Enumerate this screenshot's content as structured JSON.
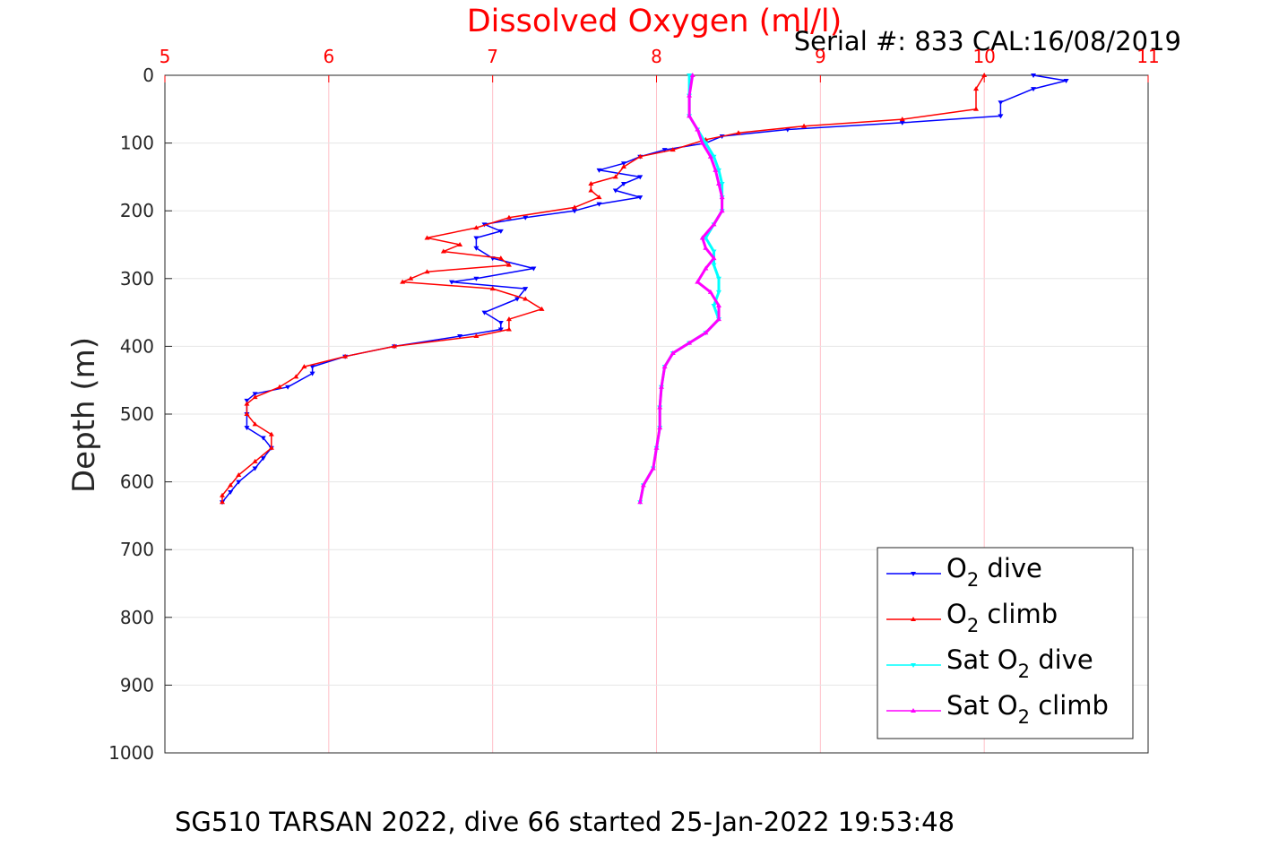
{
  "chart_data": {
    "type": "line",
    "title": "Dissolved Oxygen (ml/l)",
    "subtitle": "Serial #: 833  CAL:16/08/2019",
    "caption": "SG510 TARSAN 2022, dive 66 started 25-Jan-2022 19:53:48",
    "xlabel": "",
    "ylabel": "Depth (m)",
    "xlim": [
      5,
      11
    ],
    "ylim": [
      0,
      1000
    ],
    "y_reversed": true,
    "x_axis_position": "top",
    "xticks": [
      5,
      6,
      7,
      8,
      9,
      10,
      11
    ],
    "yticks": [
      0,
      100,
      200,
      300,
      400,
      500,
      600,
      700,
      800,
      900,
      1000
    ],
    "grid": true,
    "legend_position": "bottom-right",
    "colors": {
      "title": "#ff0000",
      "xticks": "#ff0000",
      "grid": "#ffc0c8"
    },
    "series": [
      {
        "label_main": "O",
        "label_sub": "2",
        "label_tail": " dive",
        "color": "#0000ff",
        "marker": "triangle-down",
        "points": [
          [
            10.3,
            0
          ],
          [
            10.5,
            8
          ],
          [
            10.3,
            20
          ],
          [
            10.1,
            40
          ],
          [
            10.1,
            60
          ],
          [
            9.5,
            70
          ],
          [
            8.8,
            80
          ],
          [
            8.4,
            90
          ],
          [
            8.3,
            100
          ],
          [
            8.05,
            110
          ],
          [
            7.9,
            120
          ],
          [
            7.8,
            130
          ],
          [
            7.65,
            140
          ],
          [
            7.9,
            150
          ],
          [
            7.8,
            160
          ],
          [
            7.75,
            170
          ],
          [
            7.9,
            180
          ],
          [
            7.65,
            190
          ],
          [
            7.5,
            200
          ],
          [
            7.2,
            210
          ],
          [
            6.95,
            220
          ],
          [
            7.05,
            230
          ],
          [
            6.9,
            240
          ],
          [
            6.9,
            255
          ],
          [
            7.0,
            270
          ],
          [
            7.25,
            285
          ],
          [
            6.9,
            300
          ],
          [
            6.75,
            305
          ],
          [
            7.2,
            315
          ],
          [
            7.15,
            330
          ],
          [
            6.95,
            350
          ],
          [
            7.05,
            365
          ],
          [
            7.05,
            375
          ],
          [
            6.8,
            385
          ],
          [
            6.4,
            400
          ],
          [
            6.1,
            415
          ],
          [
            5.9,
            430
          ],
          [
            5.9,
            440
          ],
          [
            5.75,
            460
          ],
          [
            5.55,
            470
          ],
          [
            5.5,
            480
          ],
          [
            5.5,
            500
          ],
          [
            5.5,
            520
          ],
          [
            5.6,
            535
          ],
          [
            5.65,
            550
          ],
          [
            5.6,
            565
          ],
          [
            5.55,
            580
          ],
          [
            5.45,
            600
          ],
          [
            5.4,
            615
          ],
          [
            5.35,
            630
          ]
        ]
      },
      {
        "label_main": "O",
        "label_sub": "2",
        "label_tail": " climb",
        "color": "#ff0000",
        "marker": "triangle-up",
        "points": [
          [
            10.0,
            0
          ],
          [
            9.95,
            20
          ],
          [
            9.95,
            50
          ],
          [
            9.5,
            65
          ],
          [
            8.9,
            75
          ],
          [
            8.5,
            85
          ],
          [
            8.3,
            95
          ],
          [
            8.1,
            110
          ],
          [
            7.9,
            120
          ],
          [
            7.8,
            135
          ],
          [
            7.75,
            150
          ],
          [
            7.6,
            160
          ],
          [
            7.6,
            170
          ],
          [
            7.65,
            180
          ],
          [
            7.5,
            195
          ],
          [
            7.1,
            210
          ],
          [
            6.9,
            225
          ],
          [
            6.6,
            240
          ],
          [
            6.8,
            250
          ],
          [
            6.7,
            260
          ],
          [
            7.05,
            270
          ],
          [
            7.1,
            280
          ],
          [
            6.6,
            290
          ],
          [
            6.5,
            300
          ],
          [
            6.45,
            305
          ],
          [
            7.0,
            315
          ],
          [
            7.2,
            330
          ],
          [
            7.3,
            345
          ],
          [
            7.1,
            360
          ],
          [
            7.1,
            375
          ],
          [
            6.9,
            385
          ],
          [
            6.4,
            400
          ],
          [
            6.1,
            415
          ],
          [
            5.85,
            430
          ],
          [
            5.8,
            445
          ],
          [
            5.7,
            460
          ],
          [
            5.55,
            475
          ],
          [
            5.5,
            485
          ],
          [
            5.5,
            500
          ],
          [
            5.55,
            515
          ],
          [
            5.65,
            530
          ],
          [
            5.65,
            550
          ],
          [
            5.55,
            570
          ],
          [
            5.45,
            590
          ],
          [
            5.4,
            605
          ],
          [
            5.35,
            620
          ],
          [
            5.35,
            630
          ]
        ]
      },
      {
        "label_main": "Sat O",
        "label_sub": "2",
        "label_tail": " dive",
        "color": "#00ffff",
        "marker": "triangle-down",
        "points": [
          [
            8.2,
            0
          ],
          [
            8.2,
            30
          ],
          [
            8.2,
            60
          ],
          [
            8.25,
            80
          ],
          [
            8.3,
            100
          ],
          [
            8.35,
            120
          ],
          [
            8.38,
            140
          ],
          [
            8.4,
            160
          ],
          [
            8.4,
            180
          ],
          [
            8.4,
            200
          ],
          [
            8.35,
            220
          ],
          [
            8.3,
            240
          ],
          [
            8.35,
            260
          ],
          [
            8.35,
            280
          ],
          [
            8.38,
            300
          ],
          [
            8.38,
            320
          ],
          [
            8.35,
            340
          ],
          [
            8.38,
            360
          ],
          [
            8.3,
            380
          ],
          [
            8.2,
            395
          ],
          [
            8.1,
            410
          ],
          [
            8.05,
            430
          ],
          [
            8.03,
            460
          ],
          [
            8.02,
            490
          ],
          [
            8.02,
            520
          ],
          [
            8.0,
            550
          ],
          [
            7.98,
            580
          ],
          [
            7.92,
            605
          ],
          [
            7.9,
            630
          ]
        ]
      },
      {
        "label_main": "Sat O",
        "label_sub": "2",
        "label_tail": " climb",
        "color": "#ff00ff",
        "marker": "triangle-up",
        "points": [
          [
            8.22,
            0
          ],
          [
            8.2,
            30
          ],
          [
            8.2,
            60
          ],
          [
            8.25,
            80
          ],
          [
            8.28,
            100
          ],
          [
            8.33,
            120
          ],
          [
            8.36,
            140
          ],
          [
            8.38,
            160
          ],
          [
            8.4,
            180
          ],
          [
            8.4,
            200
          ],
          [
            8.35,
            220
          ],
          [
            8.28,
            240
          ],
          [
            8.3,
            255
          ],
          [
            8.35,
            270
          ],
          [
            8.3,
            285
          ],
          [
            8.25,
            305
          ],
          [
            8.33,
            320
          ],
          [
            8.38,
            340
          ],
          [
            8.38,
            360
          ],
          [
            8.3,
            380
          ],
          [
            8.2,
            395
          ],
          [
            8.1,
            410
          ],
          [
            8.05,
            430
          ],
          [
            8.03,
            460
          ],
          [
            8.02,
            490
          ],
          [
            8.02,
            520
          ],
          [
            8.0,
            550
          ],
          [
            7.98,
            580
          ],
          [
            7.92,
            605
          ],
          [
            7.9,
            630
          ]
        ]
      }
    ]
  }
}
